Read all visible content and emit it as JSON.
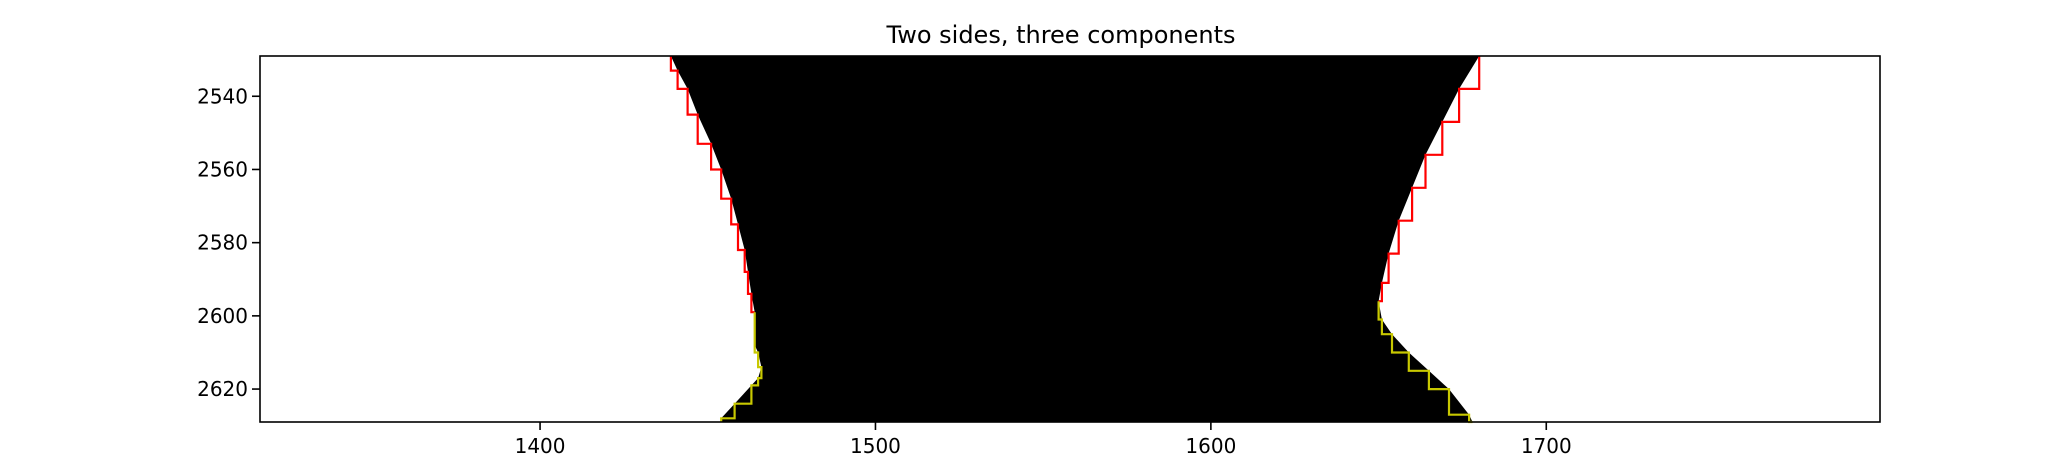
{
  "chart_data": {
    "type": "image",
    "title": "Two sides, three components",
    "xlabel": "",
    "ylabel": "",
    "xlim": [
      1316.5,
      1799.5
    ],
    "ylim": [
      2629,
      2529
    ],
    "x_ticks": [
      1400,
      1500,
      1600,
      1700
    ],
    "y_ticks": [
      2540,
      2560,
      2580,
      2600,
      2620
    ],
    "grid": false,
    "legend": "none",
    "colors": {
      "background": "#ffffff",
      "filled_region": "#000000",
      "upper_contour": "#ff0000",
      "lower_contour": "#c8c800"
    },
    "series": [
      {
        "color": "#ff0000",
        "x": [
          1439,
          1441,
          1444,
          1447,
          1451,
          1454,
          1457,
          1459,
          1461,
          1462,
          1463,
          1464
        ],
        "y": [
          2529,
          2533,
          2538,
          2545,
          2553,
          2560,
          2568,
          2575,
          2582,
          2588,
          2594,
          2599
        ]
      },
      {
        "color": "#c8c800",
        "x": [
          1464,
          1464,
          1464,
          1465,
          1466,
          1465,
          1463,
          1458,
          1454,
          1454
        ],
        "y": [
          2599,
          2604,
          2608,
          2610,
          2614,
          2617,
          2619,
          2624,
          2628,
          2629
        ]
      },
      {
        "color": "#ff0000",
        "x": [
          1680,
          1674,
          1669,
          1664,
          1660,
          1656,
          1653,
          1651,
          1650
        ],
        "y": [
          2529,
          2538,
          2547,
          2556,
          2565,
          2574,
          2583,
          2591,
          2596
        ]
      },
      {
        "color": "#c8c800",
        "x": [
          1650,
          1651,
          1654,
          1659,
          1665,
          1671,
          1677,
          1678
        ],
        "y": [
          2596,
          2601,
          2605,
          2610,
          2615,
          2620,
          2627,
          2629
        ]
      }
    ]
  }
}
